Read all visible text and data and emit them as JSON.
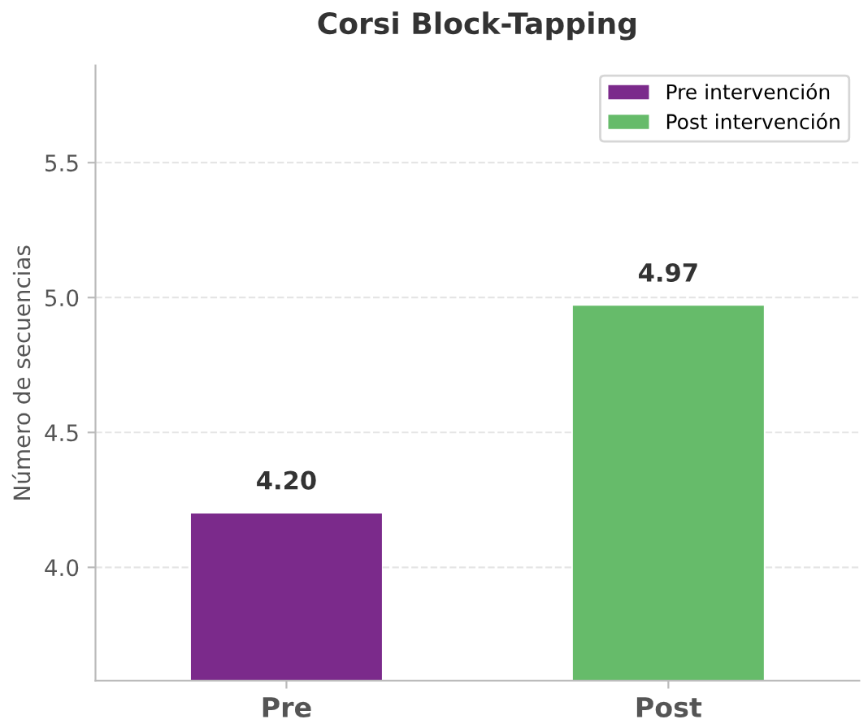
{
  "chart_data": {
    "type": "bar",
    "title": "Corsi Block-Tapping",
    "ylabel": "Número de secuencias",
    "categories": [
      "Pre",
      "Post"
    ],
    "series": [
      {
        "name": "Pre intervención",
        "color": "#7b2a8b",
        "values": [
          4.2,
          null
        ],
        "value_labels": [
          "4.20",
          null
        ]
      },
      {
        "name": "Post intervención",
        "color": "#66bb6a",
        "values": [
          null,
          4.97
        ],
        "value_labels": [
          null,
          "4.97"
        ]
      }
    ],
    "ylim": [
      3.58,
      5.86
    ],
    "yticks": [
      {
        "value": 4.0,
        "label": "4.0"
      },
      {
        "value": 4.5,
        "label": "4.5"
      },
      {
        "value": 5.0,
        "label": "5.0"
      },
      {
        "value": 5.5,
        "label": "5.5"
      }
    ],
    "grid": "y",
    "legend": "top right"
  }
}
